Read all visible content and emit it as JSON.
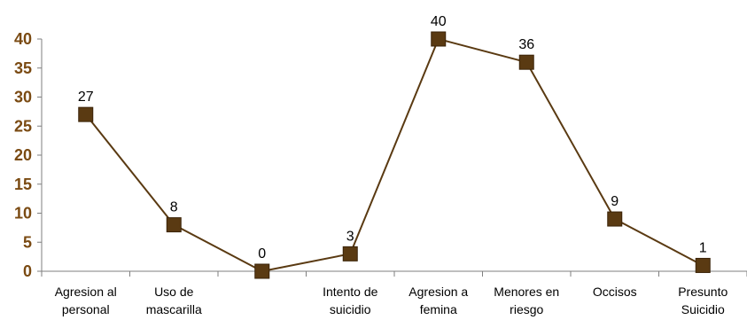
{
  "chart_data": {
    "type": "line",
    "title": "",
    "xlabel": "",
    "ylabel": "",
    "ylim": [
      0,
      40
    ],
    "yticks": [
      0,
      5,
      10,
      15,
      20,
      25,
      30,
      35,
      40
    ],
    "grid": false,
    "categories": [
      [
        "Agresion al",
        "personal"
      ],
      [
        "Uso de",
        "mascarilla"
      ],
      [
        ""
      ],
      [
        "Intento de",
        "suicidio"
      ],
      [
        "Agresion a",
        "femina"
      ],
      [
        "Menores en",
        "riesgo"
      ],
      [
        "Occisos"
      ],
      [
        "Presunto",
        "Suicidio"
      ]
    ],
    "series": [
      {
        "values": [
          27,
          8,
          0,
          3,
          40,
          36,
          9,
          1
        ],
        "color": "#5a3a12",
        "marker": "square",
        "data_labels": true
      }
    ],
    "colors": {
      "line": "#5a3a12",
      "marker": "#5a3a12",
      "ytick_text": "#7a4a12",
      "axis": "#7f7f7f"
    }
  }
}
